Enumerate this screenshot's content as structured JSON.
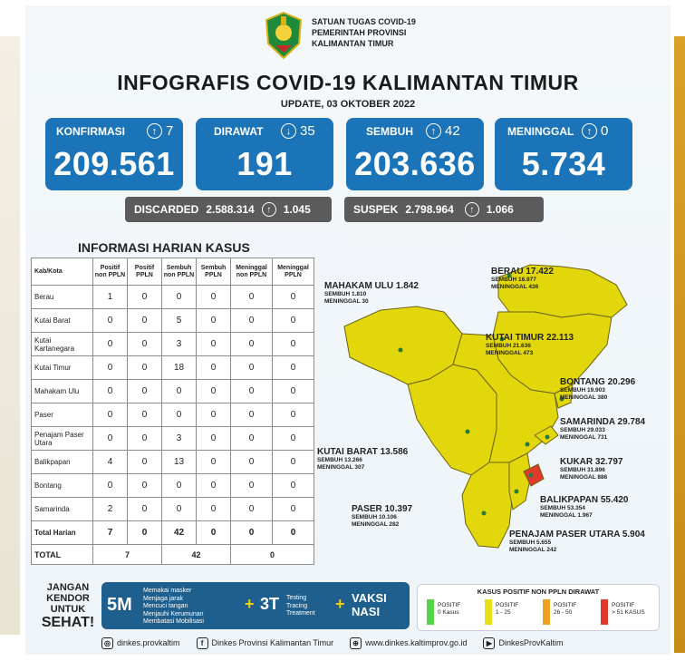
{
  "header": {
    "org_lines": [
      "SATUAN TUGAS COVID-19",
      "PEMERINTAH PROVINSI",
      "KALIMANTAN TIMUR"
    ],
    "title": "INFOGRAFIS COVID-19 KALIMANTAN TIMUR",
    "update": "UPDATE, 03 OKTOBER 2022"
  },
  "stats": [
    {
      "label": "KONFIRMASI",
      "arrow": "↑",
      "delta": "7",
      "value": "209.561"
    },
    {
      "label": "DIRAWAT",
      "arrow": "↓",
      "delta": "35",
      "value": "191"
    },
    {
      "label": "SEMBUH",
      "arrow": "↑",
      "delta": "42",
      "value": "203.636"
    },
    {
      "label": "MENINGGAL",
      "arrow": "↑",
      "delta": "0",
      "value": "5.734"
    }
  ],
  "discarded": {
    "label": "DISCARDED",
    "value": "2.588.314",
    "arrow": "↑",
    "delta": "1.045"
  },
  "suspek": {
    "label": "SUSPEK",
    "value": "2.798.964",
    "arrow": "↑",
    "delta": "1.066"
  },
  "table": {
    "title": "INFORMASI HARIAN KASUS",
    "headers": [
      "Kab/Kota",
      "Positif non PPLN",
      "Positif PPLN",
      "Sembuh non PPLN",
      "Sembuh PPLN",
      "Meninggal non PPLN",
      "Meninggal PPLN"
    ],
    "rows": [
      [
        "Berau",
        "1",
        "0",
        "0",
        "0",
        "0",
        "0"
      ],
      [
        "Kutai Barat",
        "0",
        "0",
        "5",
        "0",
        "0",
        "0"
      ],
      [
        "Kutai Kartanegara",
        "0",
        "0",
        "3",
        "0",
        "0",
        "0"
      ],
      [
        "Kutai Timur",
        "0",
        "0",
        "18",
        "0",
        "0",
        "0"
      ],
      [
        "Mahakam Ulu",
        "0",
        "0",
        "0",
        "0",
        "0",
        "0"
      ],
      [
        "Paser",
        "0",
        "0",
        "0",
        "0",
        "0",
        "0"
      ],
      [
        "Penajam Paser Utara",
        "0",
        "0",
        "3",
        "0",
        "0",
        "0"
      ],
      [
        "Balikpapan",
        "4",
        "0",
        "13",
        "0",
        "0",
        "0"
      ],
      [
        "Bontang",
        "0",
        "0",
        "0",
        "0",
        "0",
        "0"
      ],
      [
        "Samarinda",
        "2",
        "0",
        "0",
        "0",
        "0",
        "0"
      ]
    ],
    "harian": [
      "Total Harian",
      "7",
      "0",
      "42",
      "0",
      "0",
      "0"
    ],
    "total": [
      "TOTAL",
      "7",
      "42",
      "0"
    ]
  },
  "map": {
    "regions": [
      {
        "name": "MAHAKAM ULU",
        "value": "1.842",
        "sembuh": "SEMBUH 1.810",
        "meninggal": "MENINGGAL 30"
      },
      {
        "name": "BERAU",
        "value": "17.422",
        "sembuh": "SEMBUH 16.977",
        "meninggal": "MENINGGAL 436"
      },
      {
        "name": "KUTAI TIMUR",
        "value": "22.113",
        "sembuh": "SEMBUH 21.636",
        "meninggal": "MENINGGAL 473"
      },
      {
        "name": "BONTANG",
        "value": "20.296",
        "sembuh": "SEMBUH 19.903",
        "meninggal": "MENINGGAL 380"
      },
      {
        "name": "SAMARINDA",
        "value": "29.784",
        "sembuh": "SEMBUH 29.033",
        "meninggal": "MENINGGAL 731"
      },
      {
        "name": "KUKAR",
        "value": "32.797",
        "sembuh": "SEMBUH 31.896",
        "meninggal": "MENINGGAL 886"
      },
      {
        "name": "KUTAI BARAT",
        "value": "13.586",
        "sembuh": "SEMBUH 13.266",
        "meninggal": "MENINGGAL 307"
      },
      {
        "name": "BALIKPAPAN",
        "value": "55.420",
        "sembuh": "SEMBUH 53.354",
        "meninggal": "MENINGGAL 1.967"
      },
      {
        "name": "PASER",
        "value": "10.397",
        "sembuh": "SEMBUH 10.106",
        "meninggal": "MENINGGAL 282"
      },
      {
        "name": "PENAJAM PASER UTARA",
        "value": "5.904",
        "sembuh": "SEMBUH 5.655",
        "meninggal": "MENINGGAL 242"
      }
    ]
  },
  "footer": {
    "slogan": [
      "JANGAN",
      "KENDOR",
      "UNTUK",
      "SEHAT!"
    ],
    "m5": "5M",
    "m5_items": [
      "Memakai masker",
      "Menjaga jarak",
      "Mencuci tangan",
      "Menjauhi Kerumunan",
      "Membatasi Mobilisasi"
    ],
    "plus": "+",
    "t3": "3T",
    "t3_items": [
      "Testing",
      "Tracing",
      "Treatment"
    ],
    "vaksin": [
      "VAKSI",
      "NASI"
    ],
    "legend_title": "KASUS POSITIF NON PPLN DIRAWAT",
    "legend": [
      {
        "label": "POSITIF",
        "range": "0 Kasus",
        "color": "#55d14a"
      },
      {
        "label": "POSITIF",
        "range": "1 - 25",
        "color": "#e6e019"
      },
      {
        "label": "POSITIF",
        "range": "26 - 50",
        "color": "#f0a020"
      },
      {
        "label": "POSITIF",
        "range": "> 51 KASUS",
        "color": "#e03a2c"
      }
    ],
    "social": [
      {
        "icon": "instagram-icon",
        "glyph": "◎",
        "text": "dinkes.provkaltim"
      },
      {
        "icon": "facebook-icon",
        "glyph": "f",
        "text": "Dinkes Provinsi Kalimantan Timur"
      },
      {
        "icon": "globe-icon",
        "glyph": "⊕",
        "text": "www.dinkes.kaltimprov.go.id"
      },
      {
        "icon": "youtube-icon",
        "glyph": "▶",
        "text": "DinkesProvKaltim"
      }
    ]
  },
  "colors": {
    "stat_blue": "#1b73b8",
    "map_yellow": "#e2d70a",
    "balikpapan_red": "#e03a2c",
    "pill_gray": "#5b5b5b"
  }
}
